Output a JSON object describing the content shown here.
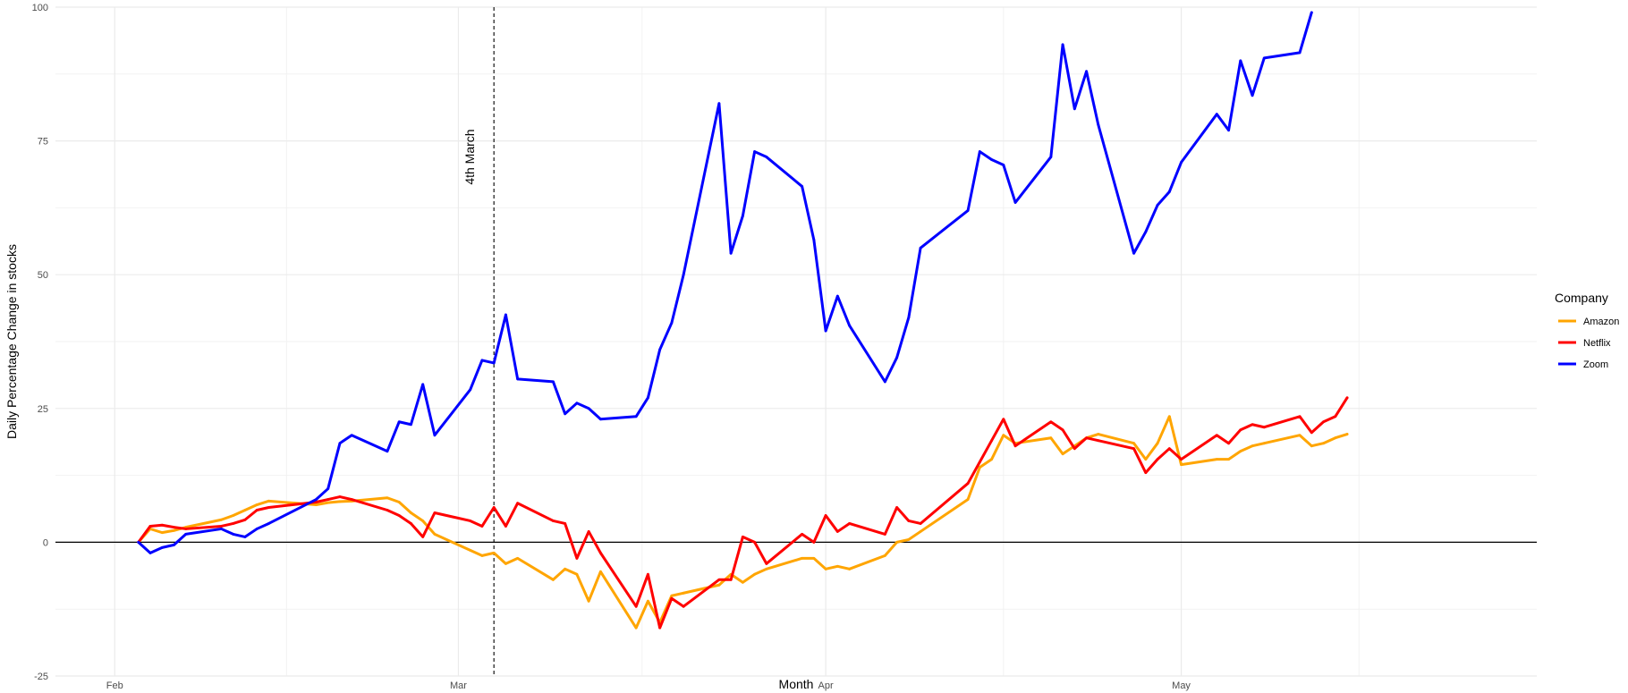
{
  "chart_data": {
    "type": "line",
    "xlabel": "Month",
    "ylabel": "Daily Percentage Change in stocks",
    "ylim": [
      -25,
      100
    ],
    "xlim": [
      "2020-01-27",
      "2020-05-31"
    ],
    "x_ticks": [
      {
        "date": "2020-02-01",
        "label": "Feb"
      },
      {
        "date": "2020-03-01",
        "label": "Mar"
      },
      {
        "date": "2020-04-01",
        "label": "Apr"
      },
      {
        "date": "2020-05-01",
        "label": "May"
      }
    ],
    "y_ticks": [
      -25,
      0,
      25,
      50,
      75,
      100
    ],
    "grid": true,
    "zero_line": true,
    "legend": {
      "title": "Company",
      "position": "right"
    },
    "vline": {
      "date": "2020-03-04",
      "label": "4th March",
      "style": "dashed"
    },
    "series": [
      {
        "name": "Amazon",
        "color": "#FFA500",
        "points": [
          [
            "2020-02-03",
            0
          ],
          [
            "2020-02-04",
            2.5
          ],
          [
            "2020-02-05",
            1.8
          ],
          [
            "2020-02-06",
            2.2
          ],
          [
            "2020-02-07",
            2.8
          ],
          [
            "2020-02-10",
            4.2
          ],
          [
            "2020-02-11",
            5
          ],
          [
            "2020-02-12",
            6
          ],
          [
            "2020-02-13",
            7
          ],
          [
            "2020-02-14",
            7.7
          ],
          [
            "2020-02-18",
            7
          ],
          [
            "2020-02-19",
            7.4
          ],
          [
            "2020-02-20",
            7.6
          ],
          [
            "2020-02-21",
            7.7
          ],
          [
            "2020-02-24",
            8.3
          ],
          [
            "2020-02-25",
            7.5
          ],
          [
            "2020-02-26",
            5.5
          ],
          [
            "2020-02-27",
            4
          ],
          [
            "2020-02-28",
            1.5
          ],
          [
            "2020-03-02",
            -1.5
          ],
          [
            "2020-03-03",
            -2.5
          ],
          [
            "2020-03-04",
            -2
          ],
          [
            "2020-03-05",
            -4
          ],
          [
            "2020-03-06",
            -3
          ],
          [
            "2020-03-09",
            -7
          ],
          [
            "2020-03-10",
            -5
          ],
          [
            "2020-03-11",
            -6
          ],
          [
            "2020-03-12",
            -11
          ],
          [
            "2020-03-13",
            -5.5
          ],
          [
            "2020-03-16",
            -16
          ],
          [
            "2020-03-17",
            -11
          ],
          [
            "2020-03-18",
            -15
          ],
          [
            "2020-03-19",
            -10
          ],
          [
            "2020-03-20",
            -9.5
          ],
          [
            "2020-03-23",
            -8
          ],
          [
            "2020-03-24",
            -6
          ],
          [
            "2020-03-25",
            -7.5
          ],
          [
            "2020-03-26",
            -6
          ],
          [
            "2020-03-27",
            -5
          ],
          [
            "2020-03-30",
            -3
          ],
          [
            "2020-03-31",
            -3
          ],
          [
            "2020-04-01",
            -5
          ],
          [
            "2020-04-02",
            -4.5
          ],
          [
            "2020-04-03",
            -5
          ],
          [
            "2020-04-06",
            -2.5
          ],
          [
            "2020-04-07",
            0
          ],
          [
            "2020-04-08",
            0.5
          ],
          [
            "2020-04-09",
            2
          ],
          [
            "2020-04-13",
            8
          ],
          [
            "2020-04-14",
            14
          ],
          [
            "2020-04-15",
            15.5
          ],
          [
            "2020-04-16",
            20
          ],
          [
            "2020-04-17",
            18.5
          ],
          [
            "2020-04-20",
            19.5
          ],
          [
            "2020-04-21",
            16.5
          ],
          [
            "2020-04-22",
            18
          ],
          [
            "2020-04-23",
            19.5
          ],
          [
            "2020-04-24",
            20.2
          ],
          [
            "2020-04-27",
            18.5
          ],
          [
            "2020-04-28",
            15.5
          ],
          [
            "2020-04-29",
            18.5
          ],
          [
            "2020-04-30",
            23.5
          ],
          [
            "2020-05-01",
            14.5
          ],
          [
            "2020-05-04",
            15.5
          ],
          [
            "2020-05-05",
            15.5
          ],
          [
            "2020-05-06",
            17
          ],
          [
            "2020-05-07",
            18
          ],
          [
            "2020-05-08",
            18.5
          ],
          [
            "2020-05-11",
            20
          ],
          [
            "2020-05-12",
            18
          ],
          [
            "2020-05-13",
            18.5
          ],
          [
            "2020-05-14",
            19.5
          ],
          [
            "2020-05-15",
            20.2
          ]
        ]
      },
      {
        "name": "Netflix",
        "color": "#FF0000",
        "points": [
          [
            "2020-02-03",
            0
          ],
          [
            "2020-02-04",
            3
          ],
          [
            "2020-02-05",
            3.2
          ],
          [
            "2020-02-06",
            2.8
          ],
          [
            "2020-02-07",
            2.5
          ],
          [
            "2020-02-10",
            3
          ],
          [
            "2020-02-11",
            3.5
          ],
          [
            "2020-02-12",
            4.2
          ],
          [
            "2020-02-13",
            6
          ],
          [
            "2020-02-14",
            6.5
          ],
          [
            "2020-02-18",
            7.5
          ],
          [
            "2020-02-19",
            8
          ],
          [
            "2020-02-20",
            8.5
          ],
          [
            "2020-02-21",
            8
          ],
          [
            "2020-02-24",
            6
          ],
          [
            "2020-02-25",
            5
          ],
          [
            "2020-02-26",
            3.5
          ],
          [
            "2020-02-27",
            1
          ],
          [
            "2020-02-28",
            5.5
          ],
          [
            "2020-03-02",
            4
          ],
          [
            "2020-03-03",
            3
          ],
          [
            "2020-03-04",
            6.5
          ],
          [
            "2020-03-05",
            3
          ],
          [
            "2020-03-06",
            7.3
          ],
          [
            "2020-03-09",
            4
          ],
          [
            "2020-03-10",
            3.5
          ],
          [
            "2020-03-11",
            -3
          ],
          [
            "2020-03-12",
            2
          ],
          [
            "2020-03-13",
            -2
          ],
          [
            "2020-03-16",
            -12
          ],
          [
            "2020-03-17",
            -6
          ],
          [
            "2020-03-18",
            -16
          ],
          [
            "2020-03-19",
            -10.5
          ],
          [
            "2020-03-20",
            -12
          ],
          [
            "2020-03-23",
            -7
          ],
          [
            "2020-03-24",
            -7
          ],
          [
            "2020-03-25",
            1
          ],
          [
            "2020-03-26",
            0
          ],
          [
            "2020-03-27",
            -4
          ],
          [
            "2020-03-30",
            1.5
          ],
          [
            "2020-03-31",
            0
          ],
          [
            "2020-04-01",
            5
          ],
          [
            "2020-04-02",
            2
          ],
          [
            "2020-04-03",
            3.5
          ],
          [
            "2020-04-06",
            1.5
          ],
          [
            "2020-04-07",
            6.5
          ],
          [
            "2020-04-08",
            4
          ],
          [
            "2020-04-09",
            3.5
          ],
          [
            "2020-04-13",
            11
          ],
          [
            "2020-04-14",
            15
          ],
          [
            "2020-04-15",
            19
          ],
          [
            "2020-04-16",
            23
          ],
          [
            "2020-04-17",
            18
          ],
          [
            "2020-04-20",
            22.5
          ],
          [
            "2020-04-21",
            21
          ],
          [
            "2020-04-22",
            17.5
          ],
          [
            "2020-04-23",
            19.5
          ],
          [
            "2020-04-24",
            19
          ],
          [
            "2020-04-27",
            17.5
          ],
          [
            "2020-04-28",
            13
          ],
          [
            "2020-04-29",
            15.5
          ],
          [
            "2020-04-30",
            17.5
          ],
          [
            "2020-05-01",
            15.5
          ],
          [
            "2020-05-04",
            20
          ],
          [
            "2020-05-05",
            18.5
          ],
          [
            "2020-05-06",
            21
          ],
          [
            "2020-05-07",
            22
          ],
          [
            "2020-05-08",
            21.5
          ],
          [
            "2020-05-11",
            23.5
          ],
          [
            "2020-05-12",
            20.5
          ],
          [
            "2020-05-13",
            22.5
          ],
          [
            "2020-05-14",
            23.5
          ],
          [
            "2020-05-15",
            27
          ]
        ]
      },
      {
        "name": "Zoom",
        "color": "#0000FF",
        "points": [
          [
            "2020-02-03",
            0
          ],
          [
            "2020-02-04",
            -2
          ],
          [
            "2020-02-05",
            -1
          ],
          [
            "2020-02-06",
            -0.5
          ],
          [
            "2020-02-07",
            1.5
          ],
          [
            "2020-02-10",
            2.5
          ],
          [
            "2020-02-11",
            1.5
          ],
          [
            "2020-02-12",
            1
          ],
          [
            "2020-02-13",
            2.5
          ],
          [
            "2020-02-14",
            3.5
          ],
          [
            "2020-02-18",
            8
          ],
          [
            "2020-02-19",
            10
          ],
          [
            "2020-02-20",
            18.5
          ],
          [
            "2020-02-21",
            20
          ],
          [
            "2020-02-24",
            17
          ],
          [
            "2020-02-25",
            22.5
          ],
          [
            "2020-02-26",
            22
          ],
          [
            "2020-02-27",
            29.5
          ],
          [
            "2020-02-28",
            20
          ],
          [
            "2020-03-02",
            28.5
          ],
          [
            "2020-03-03",
            34
          ],
          [
            "2020-03-04",
            33.5
          ],
          [
            "2020-03-05",
            42.5
          ],
          [
            "2020-03-06",
            30.5
          ],
          [
            "2020-03-09",
            30
          ],
          [
            "2020-03-10",
            24
          ],
          [
            "2020-03-11",
            26
          ],
          [
            "2020-03-12",
            25
          ],
          [
            "2020-03-13",
            23
          ],
          [
            "2020-03-16",
            23.5
          ],
          [
            "2020-03-17",
            27
          ],
          [
            "2020-03-18",
            36
          ],
          [
            "2020-03-19",
            41
          ],
          [
            "2020-03-20",
            50
          ],
          [
            "2020-03-23",
            82
          ],
          [
            "2020-03-24",
            54
          ],
          [
            "2020-03-25",
            61
          ],
          [
            "2020-03-26",
            73
          ],
          [
            "2020-03-27",
            72
          ],
          [
            "2020-03-30",
            66.5
          ],
          [
            "2020-03-31",
            56.5
          ],
          [
            "2020-04-01",
            39.5
          ],
          [
            "2020-04-02",
            46
          ],
          [
            "2020-04-03",
            40.5
          ],
          [
            "2020-04-06",
            30
          ],
          [
            "2020-04-07",
            34.5
          ],
          [
            "2020-04-08",
            42
          ],
          [
            "2020-04-09",
            55
          ],
          [
            "2020-04-13",
            62
          ],
          [
            "2020-04-14",
            73
          ],
          [
            "2020-04-15",
            71.5
          ],
          [
            "2020-04-16",
            70.5
          ],
          [
            "2020-04-17",
            63.5
          ],
          [
            "2020-04-20",
            72
          ],
          [
            "2020-04-21",
            93
          ],
          [
            "2020-04-22",
            81
          ],
          [
            "2020-04-23",
            88
          ],
          [
            "2020-04-24",
            78
          ],
          [
            "2020-04-27",
            54
          ],
          [
            "2020-04-28",
            58
          ],
          [
            "2020-04-29",
            63
          ],
          [
            "2020-04-30",
            65.5
          ],
          [
            "2020-05-01",
            71
          ],
          [
            "2020-05-04",
            80
          ],
          [
            "2020-05-05",
            77
          ],
          [
            "2020-05-06",
            90
          ],
          [
            "2020-05-07",
            83.5
          ],
          [
            "2020-05-08",
            90.5
          ],
          [
            "2020-05-11",
            91.5
          ],
          [
            "2020-05-12",
            99
          ]
        ]
      }
    ]
  }
}
